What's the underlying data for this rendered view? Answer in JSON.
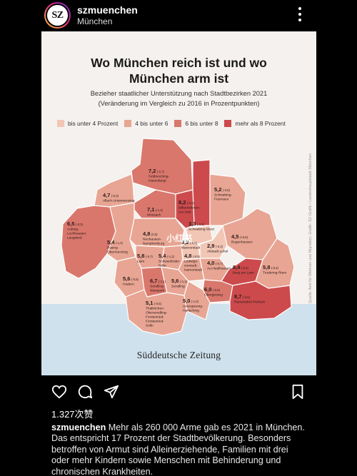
{
  "header": {
    "avatar_text": "SZ",
    "username": "szmuenchen",
    "location": "München",
    "more_icon": "more-vertical-icon"
  },
  "graphic": {
    "title_line1": "Wo München reich ist und wo",
    "title_line2": "München arm ist",
    "subtitle_line1": "Bezieher staatlicher Unterstützung nach Stadtbezirken 2021",
    "subtitle_line2": "(Veränderung im Vergleich zu 2016 in Prozentpunkten)",
    "legend": [
      {
        "label": "bis unter 4 Prozent",
        "color": "#f2c6b4"
      },
      {
        "label": "4 bis unter 6",
        "color": "#e8a593"
      },
      {
        "label": "6 bis unter 8",
        "color": "#d9776c"
      },
      {
        "label": "mehr als 8 Prozent",
        "color": "#cc4a4c"
      }
    ],
    "districts": [
      {
        "value": "7,2",
        "change": "(-1,7)",
        "name1": "Feldmoching-",
        "name2": "Hasenbergl",
        "name3": ""
      },
      {
        "value": "4,7",
        "change": "(-0,3)",
        "name1": "Allach-Untermenzing",
        "name2": "",
        "name3": ""
      },
      {
        "value": "7,1",
        "change": "(-1,4)",
        "name1": "Moosach",
        "name2": "",
        "name3": ""
      },
      {
        "value": "8,2",
        "change": "(-0,9)",
        "name1": "Milbertshofen-",
        "name2": "Am Hart",
        "name3": ""
      },
      {
        "value": "5,2",
        "change": "(-0,6)",
        "name1": "Schwabing-",
        "name2": "Freimann",
        "name3": ""
      },
      {
        "value": "3,3",
        "change": "(-0,6)",
        "name1": "Schwabing-West",
        "name2": "",
        "name3": ""
      },
      {
        "value": "6,5",
        "change": "(-0,3)",
        "name1": "Aubing-",
        "name2": "Lochhausen-",
        "name3": "Langwied"
      },
      {
        "value": "4,8",
        "change": "(0,0)",
        "name1": "Neuhausen-",
        "name2": "Nymphenburg",
        "name3": ""
      },
      {
        "value": "3,2",
        "change": "(-0,5)",
        "name1": "Maxvorstadt",
        "name2": "",
        "name3": ""
      },
      {
        "value": "2,9",
        "change": "(-0,2)",
        "name1": "Altstadt-Lehel",
        "name2": "",
        "name3": ""
      },
      {
        "value": "4,5",
        "change": "(+0,6)",
        "name1": "Bogenhausen",
        "name2": "",
        "name3": ""
      },
      {
        "value": "5,4",
        "change": "(-1,2)",
        "name1": "Pasing-",
        "name2": "Obermenzing",
        "name3": ""
      },
      {
        "value": "5,8",
        "change": "(-0,7)",
        "name1": "Laim",
        "name2": "",
        "name3": ""
      },
      {
        "value": "5,4",
        "change": "(-1,2)",
        "name1": "Schwanthaler-",
        "name2": "höhe",
        "name3": ""
      },
      {
        "value": "4,8",
        "change": "(-0,5)",
        "name1": "Ludwigs-",
        "name2": "vorstadt-",
        "name3": "Isarvorstadt"
      },
      {
        "value": "4,0",
        "change": "(-0,7)",
        "name1": "Au-Haidhausen",
        "name2": "",
        "name3": ""
      },
      {
        "value": "8,4",
        "change": "(-0,4)",
        "name1": "Berg am Laim",
        "name2": "",
        "name3": ""
      },
      {
        "value": "5,8",
        "change": "(-0,4)",
        "name1": "Trudering-Riem",
        "name2": "",
        "name3": ""
      },
      {
        "value": "5,6",
        "change": "(-0,5)",
        "name1": "Hadern",
        "name2": "",
        "name3": ""
      },
      {
        "value": "6,7",
        "change": "(-1,1)",
        "name1": "Sendling-",
        "name2": "Westpark",
        "name3": ""
      },
      {
        "value": "5,6",
        "change": "(-1,1)",
        "name1": "Sendling",
        "name2": "",
        "name3": ""
      },
      {
        "value": "6,0",
        "change": "(-0,5)",
        "name1": "Obergiesing",
        "name2": "",
        "name3": ""
      },
      {
        "value": "8,7",
        "change": "(-0,5)",
        "name1": "Ramersdorf-Perlach",
        "name2": "",
        "name3": ""
      },
      {
        "value": "5,1",
        "change": "(-0,5)",
        "name1": "Thalkirchen-",
        "name2": "Obersendling-",
        "name3": "Forstenried-"
      },
      {
        "value": "5,0",
        "change": "(-1,0)",
        "name1": "Untergiesing-",
        "name2": "Harlaching",
        "name3": ""
      }
    ],
    "extra_label": "Fürstenried-",
    "extra_label2": "Solln",
    "source_text": "Quelle: Amt für Wohnen und Migration; Grafik: SZ-Grafik / Landeshauptstadt München",
    "logo_text": "Süddeutsche Zeitung",
    "watermark": "小红书"
  },
  "actions": {
    "like_icon": "heart-icon",
    "comment_icon": "comment-icon",
    "share_icon": "send-icon",
    "save_icon": "bookmark-icon"
  },
  "likes": "1.327次赞",
  "caption": {
    "username": "szmuenchen",
    "text": "Mehr als 260 000 Arme gab es 2021 in München. Das entspricht 17 Prozent der Stadtbevölkerung. Besonders betroffen von Armut sind Alleinerziehende, Familien mit drei oder mehr Kindern sowie Menschen mit Behinderung und chronischen Krankheiten."
  }
}
